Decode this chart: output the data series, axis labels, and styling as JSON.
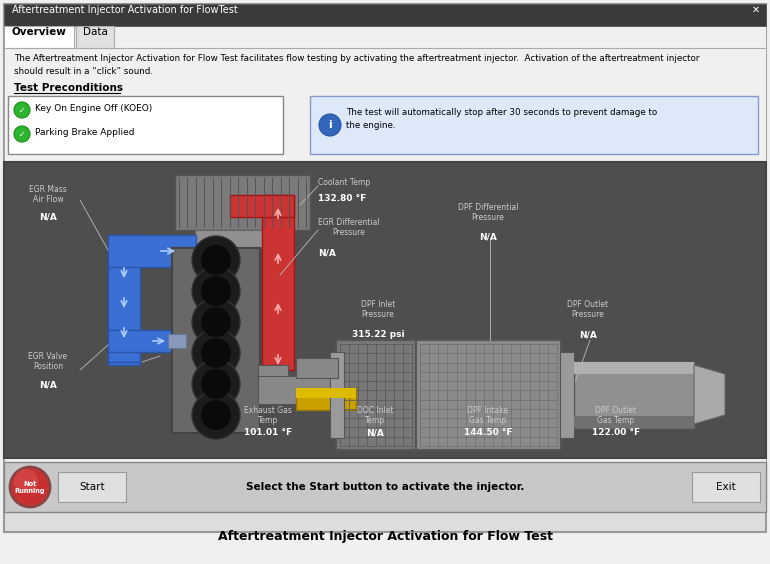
{
  "title_bar": "Aftertreatment Injector Activation for FlowTest",
  "tab_overview": "Overview",
  "tab_data": "Data",
  "description_line1": "The Aftertreatment Injector Activation for Flow Test facilitates flow testing by activating the aftertreatment injector.  Activation of the aftertreatment injector",
  "description_line2": "should result in a “click” sound.",
  "preconditions_title": "Test Preconditions",
  "preconditions": [
    "Key On Engine Off (KOEO)",
    "Parking Brake Applied"
  ],
  "info_text_line1": "The test will automatically stop after 30 seconds to prevent damage to",
  "info_text_line2": "the engine.",
  "diagram_bg": "#525252",
  "sensor_labels": [
    {
      "name": "EGR Mass\nAir Flow",
      "value": "N/A",
      "nx": 0.075,
      "ny": 0.83,
      "vx": 0.075,
      "vy": 0.8
    },
    {
      "name": "EGR Valve\nPosition",
      "value": "N/A",
      "nx": 0.075,
      "ny": 0.57,
      "vx": 0.075,
      "vy": 0.54
    },
    {
      "name": "Coolant Temp",
      "value": "132.80 °F",
      "nx": 0.415,
      "ny": 0.96,
      "vx": 0.415,
      "vy": 0.93
    },
    {
      "name": "EGR Differential\nPressure",
      "value": "N/A",
      "nx": 0.415,
      "ny": 0.855,
      "vx": 0.415,
      "vy": 0.815
    },
    {
      "name": "DPF Differential\nPressure",
      "value": "N/A",
      "nx": 0.61,
      "ny": 0.9,
      "vx": 0.61,
      "vy": 0.86
    },
    {
      "name": "DPF Inlet\nPressure",
      "value": "315.22 psi",
      "nx": 0.49,
      "ny": 0.75,
      "vx": 0.49,
      "vy": 0.72
    },
    {
      "name": "DPF Outlet\nPressure",
      "value": "N/A",
      "nx": 0.7,
      "ny": 0.75,
      "vx": 0.7,
      "vy": 0.72
    },
    {
      "name": "Exhaust Gas\nTemp",
      "value": "101.01 °F",
      "nx": 0.34,
      "ny": 0.16,
      "vx": 0.34,
      "vy": 0.13
    },
    {
      "name": "DOC Inlet\nTemp",
      "value": "N/A",
      "nx": 0.46,
      "ny": 0.16,
      "vx": 0.46,
      "vy": 0.13
    },
    {
      "name": "DPF Intake\nGas Temp",
      "value": "144.50 °F",
      "nx": 0.585,
      "ny": 0.16,
      "vx": 0.585,
      "vy": 0.13
    },
    {
      "name": "DPF Outlet\nGas Temp",
      "value": "122.00 °F",
      "nx": 0.71,
      "ny": 0.16,
      "vx": 0.71,
      "vy": 0.13
    }
  ],
  "status_text": "Select the Start button to activate the injector.",
  "caption": "Aftertreatment Injector Activation for Flow Test",
  "figure_bg": "#f0f0f0",
  "window_bg": "#f0f0f0",
  "title_bar_bg": "#3a3a3a",
  "diag_border": "#555555"
}
